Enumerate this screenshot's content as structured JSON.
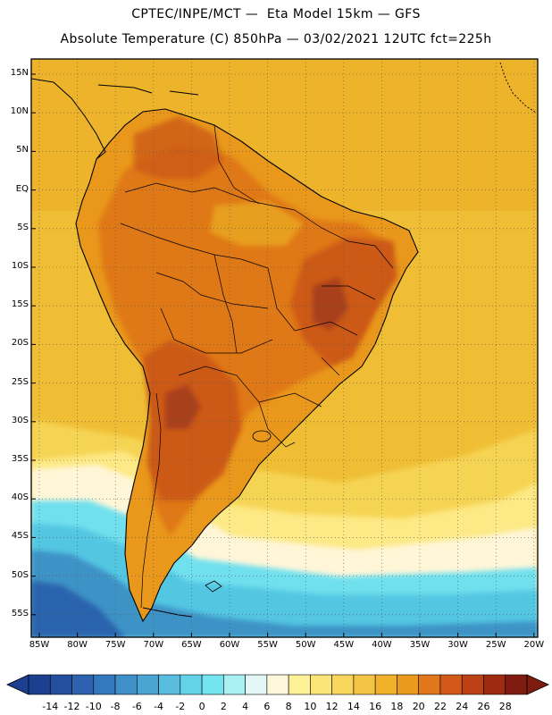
{
  "header": {
    "line1": "CPTEC/INPE/MCT —  Eta Model 15km — GFS",
    "line2": "Absolute Temperature (C) 850hPa — 03/02/2021 12UTC fct=225h"
  },
  "axes": {
    "lat_labels": [
      "15N",
      "10N",
      "5N",
      "EQ",
      "5S",
      "10S",
      "15S",
      "20S",
      "25S",
      "30S",
      "35S",
      "40S",
      "45S",
      "50S",
      "55S"
    ],
    "lon_labels": [
      "85W",
      "80W",
      "75W",
      "70W",
      "65W",
      "60W",
      "55W",
      "50W",
      "45W",
      "40W",
      "35W",
      "30W",
      "25W",
      "20W"
    ]
  },
  "colorbar": {
    "labels": [
      "-14",
      "-12",
      "-10",
      "-8",
      "-6",
      "-4",
      "-2",
      "0",
      "2",
      "4",
      "6",
      "8",
      "10",
      "12",
      "14",
      "16",
      "18",
      "20",
      "22",
      "24",
      "26",
      "28"
    ],
    "colors": [
      "#1d3f8f",
      "#244f9f",
      "#2c62ae",
      "#3479bd",
      "#3f90c8",
      "#4ba5d3",
      "#59bde0",
      "#63d3ea",
      "#73e4f0",
      "#a9f0f3",
      "#e2f7f6",
      "#fff7dc",
      "#fdf198",
      "#fbe577",
      "#f8d65b",
      "#f4c444",
      "#f1b12b",
      "#ec9a1d",
      "#e2761a",
      "#d3591a",
      "#bd4116",
      "#9e2a12",
      "#7e1c10"
    ]
  },
  "style": {
    "ocean": "#efbe35",
    "land_base": "#e9981c",
    "warm": "#de7419",
    "hot": "#cc5a19",
    "hottest": "#a9401a",
    "cool": "#f7d44f",
    "mild": "#fde985",
    "pale": "#fff7d8",
    "cyan": "#6fe0ee",
    "aqua": "#52c7e2",
    "blue": "#3d93c6",
    "deep": "#2b64ad"
  }
}
